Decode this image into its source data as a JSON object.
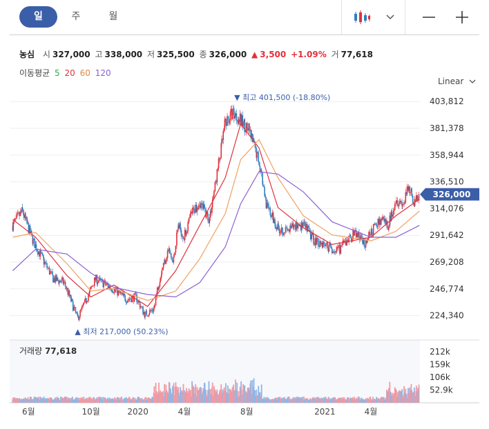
{
  "periods": [
    "일",
    "주",
    "월"
  ],
  "active_period": "일",
  "quote": {
    "name": "농심",
    "open_label": "시",
    "open": "327,000",
    "high_label": "고",
    "high": "338,000",
    "low_label": "저",
    "low": "325,500",
    "close_label": "종",
    "close": "326,000",
    "change": "3,500",
    "change_pct": "+1.09%",
    "volume_label": "거",
    "volume": "77,618"
  },
  "ma_legend": {
    "label": "이동평균",
    "periods": [
      "5",
      "20",
      "60",
      "120"
    ]
  },
  "scale_label": "Linear",
  "max_annotation": {
    "prefix": "최고",
    "value": "401,500 (-18.80%)"
  },
  "min_annotation": {
    "prefix": "최저",
    "value": "217,000 (50.23%)"
  },
  "current_price_label": "326,000",
  "volume_header": {
    "label": "거래량",
    "value": "77,618"
  },
  "colors": {
    "up": "#e0313c",
    "down": "#2f7fc1",
    "accent": "#3b5ea8",
    "ma5": "#2fa84f",
    "ma20": "#e0313c",
    "ma60": "#f0a060",
    "ma120": "#8a5fd6",
    "volume_up": "#f09aa4",
    "volume_down": "#8fb6e6"
  },
  "icons": [
    "candlestick-chart-icon",
    "chevron-down-icon",
    "minus-icon",
    "plus-icon"
  ],
  "chart_data": {
    "type": "candlestick",
    "price_axis": {
      "ticks": [
        403812,
        381378,
        358944,
        336510,
        314076,
        291642,
        269208,
        246774,
        224340
      ],
      "min": 216000,
      "max": 408000
    },
    "x_ticks": [
      "6월",
      "10월",
      "2020",
      "4월",
      "8월",
      "2021",
      "4월"
    ],
    "current_price": 326000,
    "max_price": 401500,
    "min_price": 217000,
    "price_anchors": [
      {
        "x": "2019-05-01",
        "close": 300000
      },
      {
        "x": "2019-05-20",
        "close": 312000
      },
      {
        "x": "2019-06-10",
        "close": 287000
      },
      {
        "x": "2019-07-01",
        "close": 270000
      },
      {
        "x": "2019-07-20",
        "close": 255000
      },
      {
        "x": "2019-08-10",
        "close": 252000
      },
      {
        "x": "2019-08-25",
        "close": 235000
      },
      {
        "x": "2019-09-05",
        "close": 222000
      },
      {
        "x": "2019-09-25",
        "close": 240000
      },
      {
        "x": "2019-10-10",
        "close": 255000
      },
      {
        "x": "2019-11-01",
        "close": 250000
      },
      {
        "x": "2019-11-20",
        "close": 245000
      },
      {
        "x": "2019-12-10",
        "close": 238000
      },
      {
        "x": "2019-12-28",
        "close": 240000
      },
      {
        "x": "2020-01-15",
        "close": 225000
      },
      {
        "x": "2020-02-01",
        "close": 230000
      },
      {
        "x": "2020-02-15",
        "close": 260000
      },
      {
        "x": "2020-03-01",
        "close": 280000
      },
      {
        "x": "2020-03-10",
        "close": 268000
      },
      {
        "x": "2020-03-20",
        "close": 300000
      },
      {
        "x": "2020-04-01",
        "close": 290000
      },
      {
        "x": "2020-04-15",
        "close": 310000
      },
      {
        "x": "2020-05-01",
        "close": 320000
      },
      {
        "x": "2020-05-20",
        "close": 305000
      },
      {
        "x": "2020-06-05",
        "close": 345000
      },
      {
        "x": "2020-06-20",
        "close": 385000
      },
      {
        "x": "2020-07-05",
        "close": 395000
      },
      {
        "x": "2020-07-20",
        "close": 388000
      },
      {
        "x": "2020-08-05",
        "close": 380000
      },
      {
        "x": "2020-08-25",
        "close": 355000
      },
      {
        "x": "2020-09-10",
        "close": 315000
      },
      {
        "x": "2020-10-01",
        "close": 298000
      },
      {
        "x": "2020-10-20",
        "close": 295000
      },
      {
        "x": "2020-11-10",
        "close": 301000
      },
      {
        "x": "2020-11-25",
        "close": 298000
      },
      {
        "x": "2020-12-10",
        "close": 288000
      },
      {
        "x": "2021-01-05",
        "close": 283000
      },
      {
        "x": "2021-01-25",
        "close": 278000
      },
      {
        "x": "2021-02-10",
        "close": 285000
      },
      {
        "x": "2021-03-01",
        "close": 294000
      },
      {
        "x": "2021-03-20",
        "close": 285000
      },
      {
        "x": "2021-04-05",
        "close": 296000
      },
      {
        "x": "2021-04-20",
        "close": 305000
      },
      {
        "x": "2021-05-05",
        "close": 300000
      },
      {
        "x": "2021-05-20",
        "close": 322000
      },
      {
        "x": "2021-06-05",
        "close": 318000
      },
      {
        "x": "2021-06-15",
        "close": 333000
      },
      {
        "x": "2021-06-25",
        "close": 318000
      },
      {
        "x": "2021-07-05",
        "close": 326000
      }
    ],
    "moving_averages": [
      {
        "period": 20,
        "values": [
          {
            "x": "2019-05-01",
            "v": 305000
          },
          {
            "x": "2019-06-15",
            "v": 290000
          },
          {
            "x": "2019-08-15",
            "v": 258000
          },
          {
            "x": "2019-10-01",
            "v": 240000
          },
          {
            "x": "2019-11-15",
            "v": 250000
          },
          {
            "x": "2020-01-20",
            "v": 232000
          },
          {
            "x": "2020-03-15",
            "v": 262000
          },
          {
            "x": "2020-05-01",
            "v": 300000
          },
          {
            "x": "2020-06-20",
            "v": 340000
          },
          {
            "x": "2020-07-20",
            "v": 385000
          },
          {
            "x": "2020-08-25",
            "v": 365000
          },
          {
            "x": "2020-10-01",
            "v": 315000
          },
          {
            "x": "2020-11-20",
            "v": 298000
          },
          {
            "x": "2021-01-15",
            "v": 284000
          },
          {
            "x": "2021-04-01",
            "v": 290000
          },
          {
            "x": "2021-05-20",
            "v": 308000
          },
          {
            "x": "2021-07-05",
            "v": 322000
          }
        ]
      },
      {
        "period": 60,
        "values": [
          {
            "x": "2019-05-01",
            "v": 290000
          },
          {
            "x": "2019-06-15",
            "v": 294000
          },
          {
            "x": "2019-08-15",
            "v": 268000
          },
          {
            "x": "2019-10-01",
            "v": 245000
          },
          {
            "x": "2019-11-15",
            "v": 247000
          },
          {
            "x": "2020-01-20",
            "v": 237000
          },
          {
            "x": "2020-03-15",
            "v": 245000
          },
          {
            "x": "2020-05-01",
            "v": 272000
          },
          {
            "x": "2020-06-20",
            "v": 310000
          },
          {
            "x": "2020-07-20",
            "v": 355000
          },
          {
            "x": "2020-08-25",
            "v": 372000
          },
          {
            "x": "2020-10-01",
            "v": 340000
          },
          {
            "x": "2020-11-20",
            "v": 308000
          },
          {
            "x": "2021-01-15",
            "v": 292000
          },
          {
            "x": "2021-04-01",
            "v": 287000
          },
          {
            "x": "2021-05-20",
            "v": 295000
          },
          {
            "x": "2021-07-05",
            "v": 312000
          }
        ]
      },
      {
        "period": 120,
        "values": [
          {
            "x": "2019-05-01",
            "v": 262000
          },
          {
            "x": "2019-06-15",
            "v": 280000
          },
          {
            "x": "2019-08-15",
            "v": 276000
          },
          {
            "x": "2019-10-01",
            "v": 260000
          },
          {
            "x": "2019-11-15",
            "v": 248000
          },
          {
            "x": "2020-01-20",
            "v": 242000
          },
          {
            "x": "2020-03-15",
            "v": 240000
          },
          {
            "x": "2020-05-01",
            "v": 252000
          },
          {
            "x": "2020-06-20",
            "v": 282000
          },
          {
            "x": "2020-07-20",
            "v": 318000
          },
          {
            "x": "2020-08-25",
            "v": 345000
          },
          {
            "x": "2020-10-01",
            "v": 343000
          },
          {
            "x": "2020-11-20",
            "v": 328000
          },
          {
            "x": "2021-01-15",
            "v": 303000
          },
          {
            "x": "2021-04-01",
            "v": 290000
          },
          {
            "x": "2021-05-20",
            "v": 290000
          },
          {
            "x": "2021-07-05",
            "v": 300000
          }
        ]
      }
    ],
    "volume_axis": {
      "ticks": [
        "212k",
        "159k",
        "106k",
        "52.9k"
      ],
      "values": [
        212000,
        159000,
        106000,
        52900
      ],
      "max": 260000
    }
  }
}
